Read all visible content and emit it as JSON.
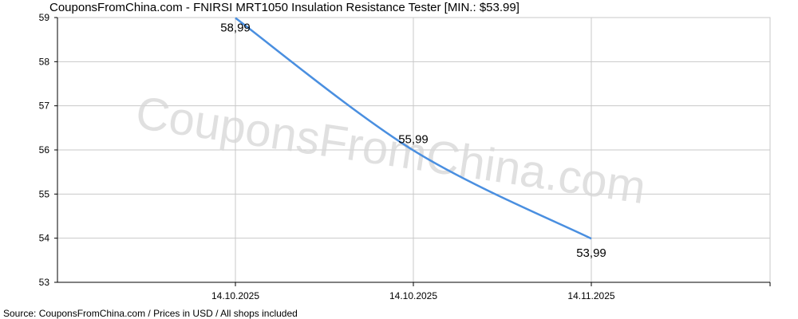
{
  "chart_data": {
    "type": "line",
    "title": "CouponsFromChina.com - FNIRSI MRT1050 Insulation Resistance Tester [MIN.: $53.99]",
    "footer": "Source: CouponsFromChina.com / Prices in USD / All shops included",
    "watermark": "CouponsFromChina.com",
    "x_labels": [
      "14.10.2025",
      "14.10.2025",
      "14.11.2025"
    ],
    "values": [
      58.99,
      55.99,
      53.99
    ],
    "value_labels": [
      "58,99",
      "55,99",
      "53,99"
    ],
    "ylim": [
      53,
      59
    ],
    "yticks": [
      53,
      54,
      55,
      56,
      57,
      58,
      59
    ],
    "grid": true,
    "line_color": "#4a8fe0",
    "grid_color": "#c8c8c8"
  }
}
